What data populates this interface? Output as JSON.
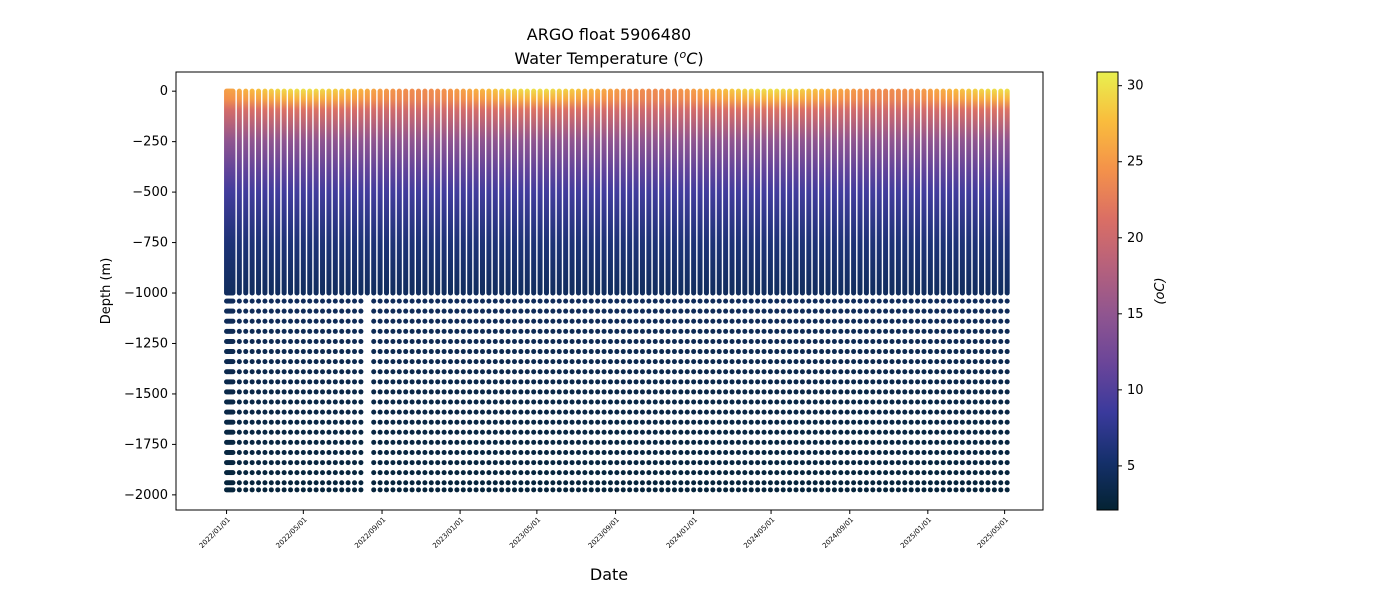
{
  "chart_data": {
    "type": "scatter",
    "title_line1": "ARGO float 5906480",
    "title_line2_prefix": "Water Temperature (",
    "title_line2_sup": "o",
    "title_line2_unit": "C",
    "title_line2_suffix": ")",
    "xlabel": "Date",
    "ylabel": "Depth (m)",
    "colorbar_label": "(oC)",
    "colorbar_label_sup": "o",
    "colorbar_label_unit": "C",
    "ylim": [
      -2075,
      95
    ],
    "xlim": [
      "2021/10/14",
      "2025/06/30"
    ],
    "yticks": [
      0,
      -250,
      -500,
      -750,
      -1000,
      -1250,
      -1500,
      -1750,
      -2000
    ],
    "ytick_labels": [
      "0",
      "−250",
      "−500",
      "−750",
      "−1000",
      "−1250",
      "−1500",
      "−1750",
      "−2000"
    ],
    "xticks": [
      "2022/01/01",
      "2022/05/01",
      "2022/09/01",
      "2023/01/01",
      "2023/05/01",
      "2023/09/01",
      "2024/01/01",
      "2024/05/01",
      "2024/09/01",
      "2025/01/01",
      "2025/05/01"
    ],
    "colorbar_range": [
      2.1,
      30.9
    ],
    "colorbar_ticks": [
      5,
      10,
      15,
      20,
      25,
      30
    ],
    "colormap": "thermal",
    "colormap_stops": [
      "#042333",
      "#15306b",
      "#3a3a9c",
      "#6a4599",
      "#8f5590",
      "#b6617c",
      "#db6f64",
      "#f4924a",
      "#f9bd3d",
      "#e8f04f"
    ],
    "profiles": {
      "first_date": "2022/01/01",
      "initial_extra_profile_days": [
        2,
        4,
        6,
        8
      ],
      "cycle_days": 10,
      "last_date": "2025/05/10",
      "dense_sampling_to_depth": -1000,
      "deep_sampling_depths": [
        -1040,
        -1090,
        -1140,
        -1190,
        -1240,
        -1290,
        -1340,
        -1390,
        -1440,
        -1490,
        -1540,
        -1590,
        -1640,
        -1690,
        -1740,
        -1790,
        -1840,
        -1890,
        -1940,
        -1975
      ],
      "missing_deep_profile_dates": [
        "2022/08/09"
      ]
    },
    "temperature_profile": {
      "depths": [
        0,
        -50,
        -100,
        -250,
        -400,
        -500,
        -750,
        -1000,
        -1500,
        -2000
      ],
      "temps_base": [
        27,
        25,
        21,
        15,
        11,
        9,
        6,
        4.5,
        3.3,
        2.6
      ],
      "surface_seasonal_amplitude": 3,
      "surface_warmest_month": 4
    }
  }
}
